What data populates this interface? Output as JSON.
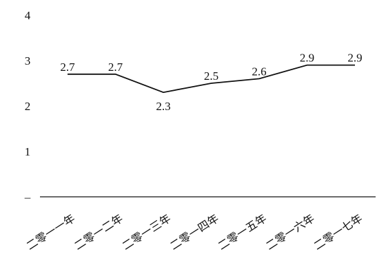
{
  "chart_data": {
    "type": "line",
    "title": "",
    "xlabel": "",
    "ylabel": "",
    "categories": [
      "二零一一年",
      "二零一二年",
      "二零一三年",
      "二零一四年",
      "二零一五年",
      "二零一六年",
      "二零一七年"
    ],
    "values": [
      2.7,
      2.7,
      2.3,
      2.5,
      2.6,
      2.9,
      2.9
    ],
    "data_labels": [
      "2.7",
      "2.7",
      "2.3",
      "2.5",
      "2.6",
      "2.9",
      "2.9"
    ],
    "y_ticks": [
      {
        "value": 0,
        "label": "–"
      },
      {
        "value": 1,
        "label": "1"
      },
      {
        "value": 2,
        "label": "2"
      },
      {
        "value": 3,
        "label": "3"
      },
      {
        "value": 4,
        "label": "4"
      }
    ],
    "ylim": [
      0,
      4
    ],
    "grid": false,
    "legend": "none",
    "line_color": "#111111"
  }
}
